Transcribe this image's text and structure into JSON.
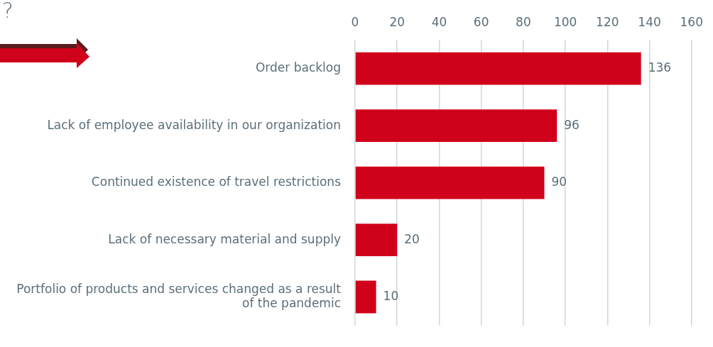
{
  "chart_data": {
    "type": "bar",
    "orientation": "horizontal",
    "categories": [
      "Order backlog",
      "Lack of employee availability in our organization",
      "Continued existence of travel restrictions",
      "Lack of necessary material and supply",
      "Portfolio of products and services changed as a result of the pandemic"
    ],
    "values": [
      136,
      96,
      90,
      20,
      10
    ],
    "color": "#d0021b",
    "xlim": [
      0,
      160
    ],
    "xticks": [
      0,
      20,
      40,
      60,
      80,
      100,
      120,
      140,
      160
    ],
    "grid": "x",
    "legend": false,
    "data_labels": true,
    "annotations": [
      "?"
    ]
  }
}
